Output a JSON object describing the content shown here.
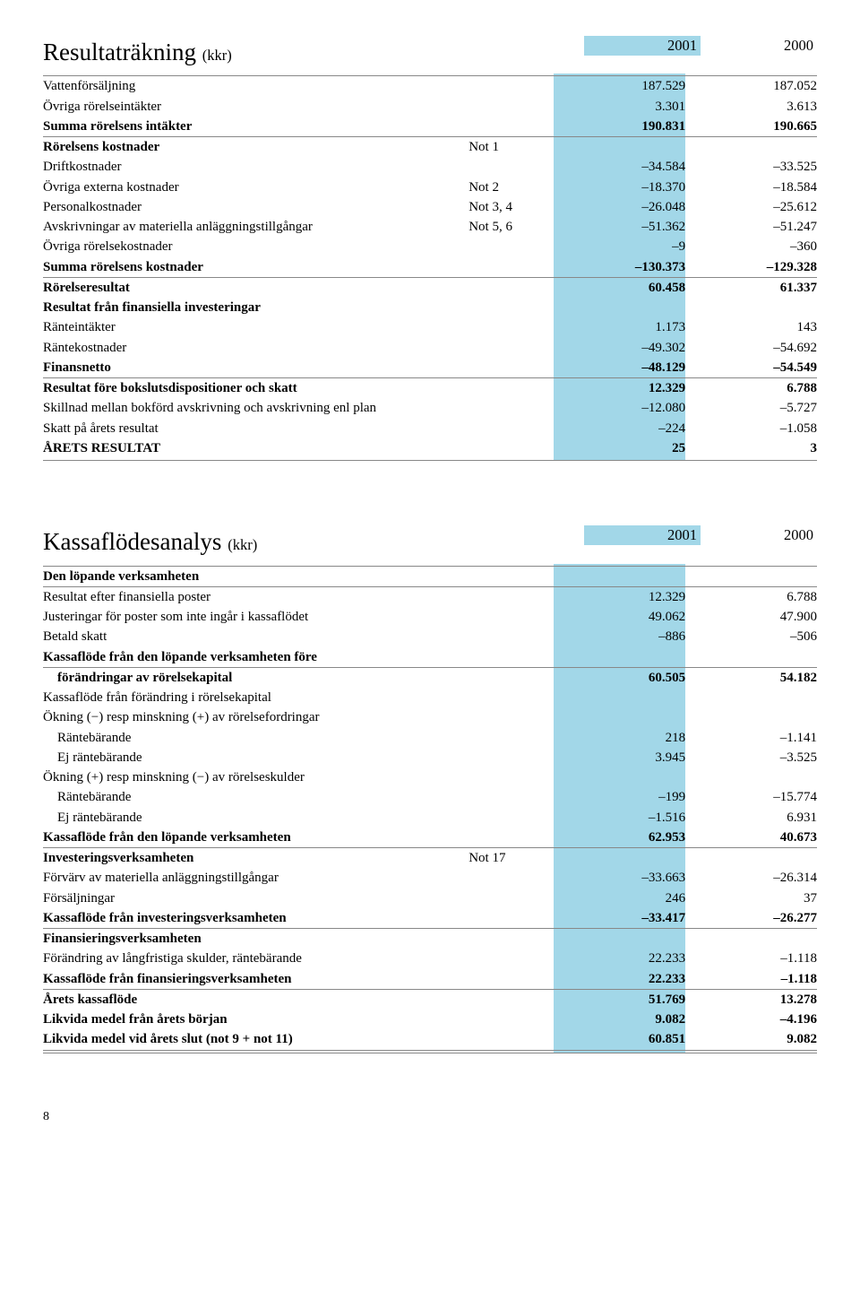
{
  "highlight_color": "#a2d7e8",
  "rule_color": "#888888",
  "page_number": "8",
  "income": {
    "title_main": "Resultaträkning",
    "title_suffix": "(kkr)",
    "col_2001": "2001",
    "col_2000": "2000",
    "rows": [
      {
        "label": "Vattenförsäljning",
        "note": "",
        "c1": "187.529",
        "c0": "187.052"
      },
      {
        "label": "Övriga rörelseintäkter",
        "note": "",
        "c1": "3.301",
        "c0": "3.613"
      },
      {
        "label": "Summa rörelsens intäkter",
        "bold": true,
        "c1": "190.831",
        "c0": "190.665",
        "rule": true
      },
      {
        "label": "Rörelsens kostnader",
        "bold": true,
        "note": "Not 1",
        "c1": "",
        "c0": ""
      },
      {
        "label": "Driftkostnader",
        "c1": "−34.584",
        "c0": "−33.525"
      },
      {
        "label": "Övriga externa kostnader",
        "note": "Not 2",
        "c1": "−18.370",
        "c0": "−18.584"
      },
      {
        "label": "Personalkostnader",
        "note": "Not 3, 4",
        "c1": "−26.048",
        "c0": "−25.612"
      },
      {
        "label": "Avskrivningar av materiella anläggningstillgångar",
        "note": "Not 5, 6",
        "c1": "−51.362",
        "c0": "−51.247"
      },
      {
        "label": "Övriga rörelsekostnader",
        "c1": "−9",
        "c0": "−360"
      },
      {
        "label": "Summa rörelsens kostnader",
        "bold": true,
        "c1": "−130.373",
        "c0": "−129.328",
        "rule": true
      },
      {
        "label": "Rörelseresultat",
        "bold": true,
        "c1": "60.458",
        "c0": "61.337"
      },
      {
        "label": "Resultat från finansiella investeringar",
        "bold": true,
        "c1": "",
        "c0": ""
      },
      {
        "label": "Ränteintäkter",
        "c1": "1.173",
        "c0": "143"
      },
      {
        "label": "Räntekostnader",
        "c1": "−49.302",
        "c0": "−54.692"
      },
      {
        "label": "Finansnetto",
        "bold": true,
        "c1": "−48.129",
        "c0": "−54.549",
        "rule": true
      },
      {
        "label": "Resultat före bokslutsdispositioner och skatt",
        "bold": true,
        "c1": "12.329",
        "c0": "6.788"
      },
      {
        "label": "Skillnad mellan bokförd avskrivning och avskrivning enl plan",
        "c1": "−12.080",
        "c0": "−5.727"
      },
      {
        "label": "Skatt på årets resultat",
        "c1": "−224",
        "c0": "−1.058"
      },
      {
        "label": "ÅRETS RESULTAT",
        "bold": true,
        "c1": "25",
        "c0": "3",
        "rule_after": true
      }
    ]
  },
  "cashflow": {
    "title_main": "Kassaflödesanalys",
    "title_suffix": "(kkr)",
    "col_2001": "2001",
    "col_2000": "2000",
    "rows": [
      {
        "label": "Den löpande verksamheten",
        "bold": true,
        "c1": "",
        "c0": "",
        "rule": true
      },
      {
        "label": "Resultat efter finansiella poster",
        "c1": "12.329",
        "c0": "6.788"
      },
      {
        "label": "Justeringar för poster som inte ingår i kassaflödet",
        "c1": "49.062",
        "c0": "47.900"
      },
      {
        "label": "Betald skatt",
        "c1": "−886",
        "c0": "−506"
      },
      {
        "label": "Kassaflöde från den löpande verksamheten före",
        "bold": true,
        "c1": "",
        "c0": "",
        "rule": true
      },
      {
        "label": "förändringar av rörelsekapital",
        "bold": true,
        "indent": true,
        "c1": "60.505",
        "c0": "54.182"
      },
      {
        "label": "Kassaflöde från förändring i rörelsekapital",
        "c1": "",
        "c0": ""
      },
      {
        "label": "Ökning (−) resp minskning (+) av rörelsefordringar",
        "c1": "",
        "c0": ""
      },
      {
        "label": "Räntebärande",
        "indent": true,
        "c1": "218",
        "c0": "−1.141"
      },
      {
        "label": "Ej räntebärande",
        "indent": true,
        "c1": "3.945",
        "c0": "−3.525"
      },
      {
        "label": "Ökning (+) resp minskning (−) av rörelseskulder",
        "c1": "",
        "c0": ""
      },
      {
        "label": "Räntebärande",
        "indent": true,
        "c1": "−199",
        "c0": "−15.774"
      },
      {
        "label": "Ej räntebärande",
        "indent": true,
        "c1": "−1.516",
        "c0": "6.931"
      },
      {
        "label": "Kassaflöde från den löpande verksamheten",
        "bold": true,
        "c1": "62.953",
        "c0": "40.673",
        "rule": true
      },
      {
        "label": "Investeringsverksamheten",
        "bold": true,
        "note": "Not 17",
        "c1": "",
        "c0": ""
      },
      {
        "label": "Förvärv av materiella anläggningstillgångar",
        "c1": "−33.663",
        "c0": "−26.314"
      },
      {
        "label": "Försäljningar",
        "c1": "246",
        "c0": "37"
      },
      {
        "label": "Kassaflöde från investeringsverksamheten",
        "bold": true,
        "c1": "−33.417",
        "c0": "−26.277",
        "rule": true
      },
      {
        "label": "Finansieringsverksamheten",
        "bold": true,
        "c1": "",
        "c0": ""
      },
      {
        "label": "Förändring av långfristiga skulder, räntebärande",
        "c1": "22.233",
        "c0": "−1.118"
      },
      {
        "label": "Kassaflöde från finansieringsverksamheten",
        "bold": true,
        "c1": "22.233",
        "c0": "−1.118",
        "rule": true
      },
      {
        "label": "Årets kassaflöde",
        "bold": true,
        "c1": "51.769",
        "c0": "13.278"
      },
      {
        "label": "Likvida medel från årets början",
        "bold": true,
        "c1": "9.082",
        "c0": "−4.196"
      },
      {
        "label": "Likvida medel vid årets slut  (not 9 + not 11)",
        "bold": true,
        "c1": "60.851",
        "c0": "9.082",
        "rule": true,
        "rule_after": true
      }
    ]
  }
}
